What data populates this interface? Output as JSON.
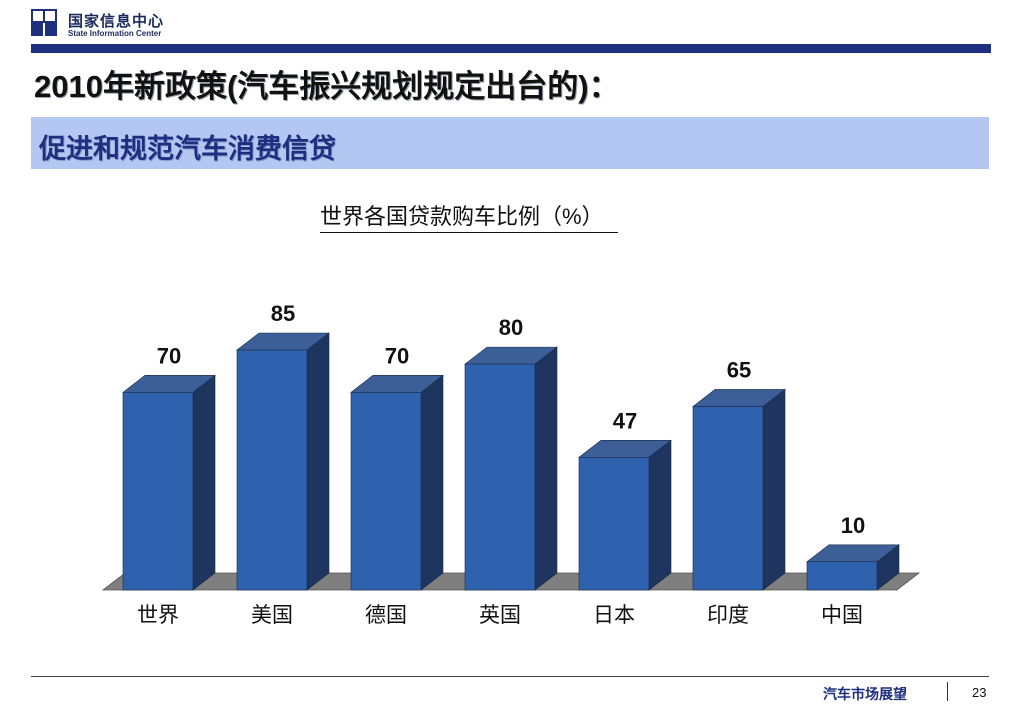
{
  "header": {
    "org_name_cn": "国家信息中心",
    "org_name_en": "State Information Center",
    "title": "2010年新政策(汽车振兴规划规定出台的)：",
    "subtitle": "促进和规范汽车消费信贷"
  },
  "chart_data": {
    "type": "bar",
    "title": "世界各国贷款购车比例（%）",
    "categories": [
      "世界",
      "美国",
      "德国",
      "英国",
      "日本",
      "印度",
      "中国"
    ],
    "values": [
      70,
      85,
      70,
      80,
      47,
      65,
      10
    ],
    "xlabel": "",
    "ylabel": "",
    "ylim": [
      0,
      90
    ],
    "grid": false,
    "legend": "none",
    "colors": {
      "front": "#2e62ae",
      "side": "#1e3560",
      "top": "#3c5f97",
      "floor": "#7f7f7f"
    }
  },
  "footer": {
    "section": "汽车市场展望",
    "page": "23"
  }
}
